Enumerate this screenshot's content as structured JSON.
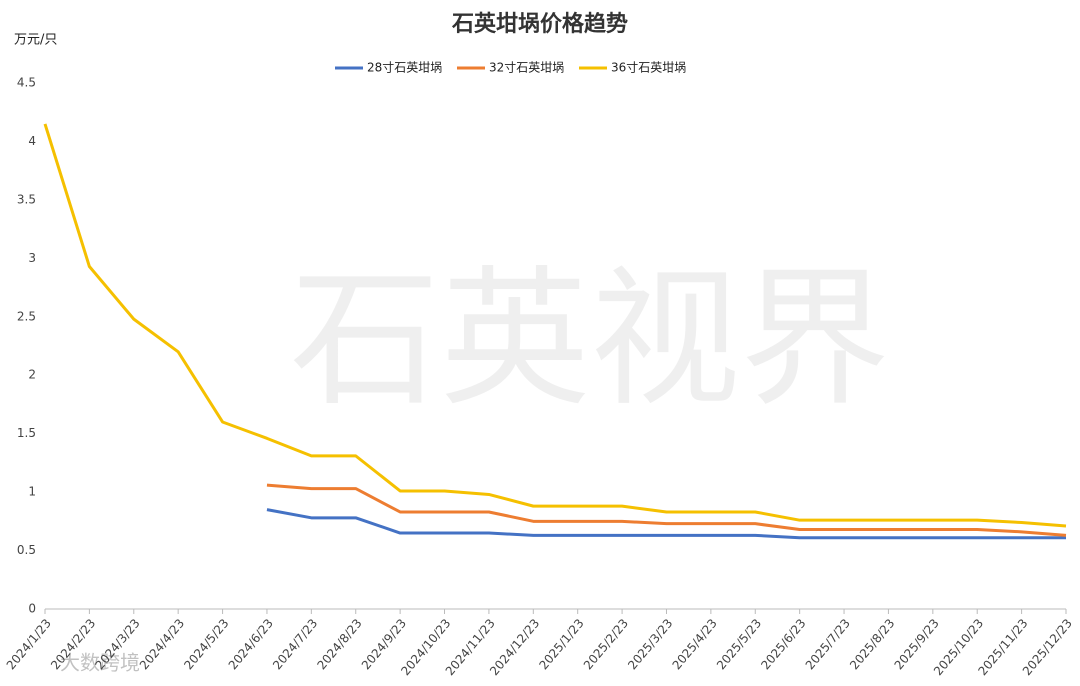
{
  "chart_data": {
    "type": "line",
    "title": "石英坩埚价格趋势",
    "y_label": "万元/只",
    "watermark": "石英视界",
    "corner_mark": "大数跨境",
    "legend": "top",
    "grid": false,
    "categories": [
      "2024/1/23",
      "2024/2/23",
      "2024/3/23",
      "2024/4/23",
      "2024/5/23",
      "2024/6/23",
      "2024/7/23",
      "2024/8/23",
      "2024/9/23",
      "2024/10/23",
      "2024/11/23",
      "2024/12/23",
      "2025/1/23",
      "2025/2/23",
      "2025/3/23",
      "2025/4/23",
      "2025/5/23",
      "2025/6/23",
      "2025/7/23",
      "2025/8/23",
      "2025/9/23",
      "2025/10/23",
      "2025/11/23",
      "2025/12/23"
    ],
    "ylim": [
      0,
      4.5
    ],
    "yticks": [
      0,
      0.5,
      1,
      1.5,
      2,
      2.5,
      3,
      3.5,
      4,
      4.5
    ],
    "series": [
      {
        "name": "28寸石英坩埚",
        "color": "#4472c4",
        "values": [
          null,
          null,
          null,
          null,
          null,
          0.85,
          0.78,
          0.78,
          0.65,
          0.65,
          0.65,
          0.63,
          0.63,
          0.63,
          0.63,
          0.63,
          0.63,
          0.61,
          0.61,
          0.61,
          0.61,
          0.61,
          0.61,
          0.61
        ]
      },
      {
        "name": "32寸石英坩埚",
        "color": "#ed7d31",
        "values": [
          null,
          null,
          null,
          null,
          null,
          1.06,
          1.03,
          1.03,
          0.83,
          0.83,
          0.83,
          0.75,
          0.75,
          0.75,
          0.73,
          0.73,
          0.73,
          0.68,
          0.68,
          0.68,
          0.68,
          0.68,
          0.66,
          0.63
        ]
      },
      {
        "name": "36寸石英坩埚",
        "color": "#f5c000",
        "values": [
          4.15,
          2.93,
          2.48,
          2.2,
          1.6,
          1.46,
          1.31,
          1.31,
          1.01,
          1.01,
          0.98,
          0.88,
          0.88,
          0.88,
          0.83,
          0.83,
          0.83,
          0.76,
          0.76,
          0.76,
          0.76,
          0.76,
          0.74,
          0.71
        ]
      }
    ]
  }
}
